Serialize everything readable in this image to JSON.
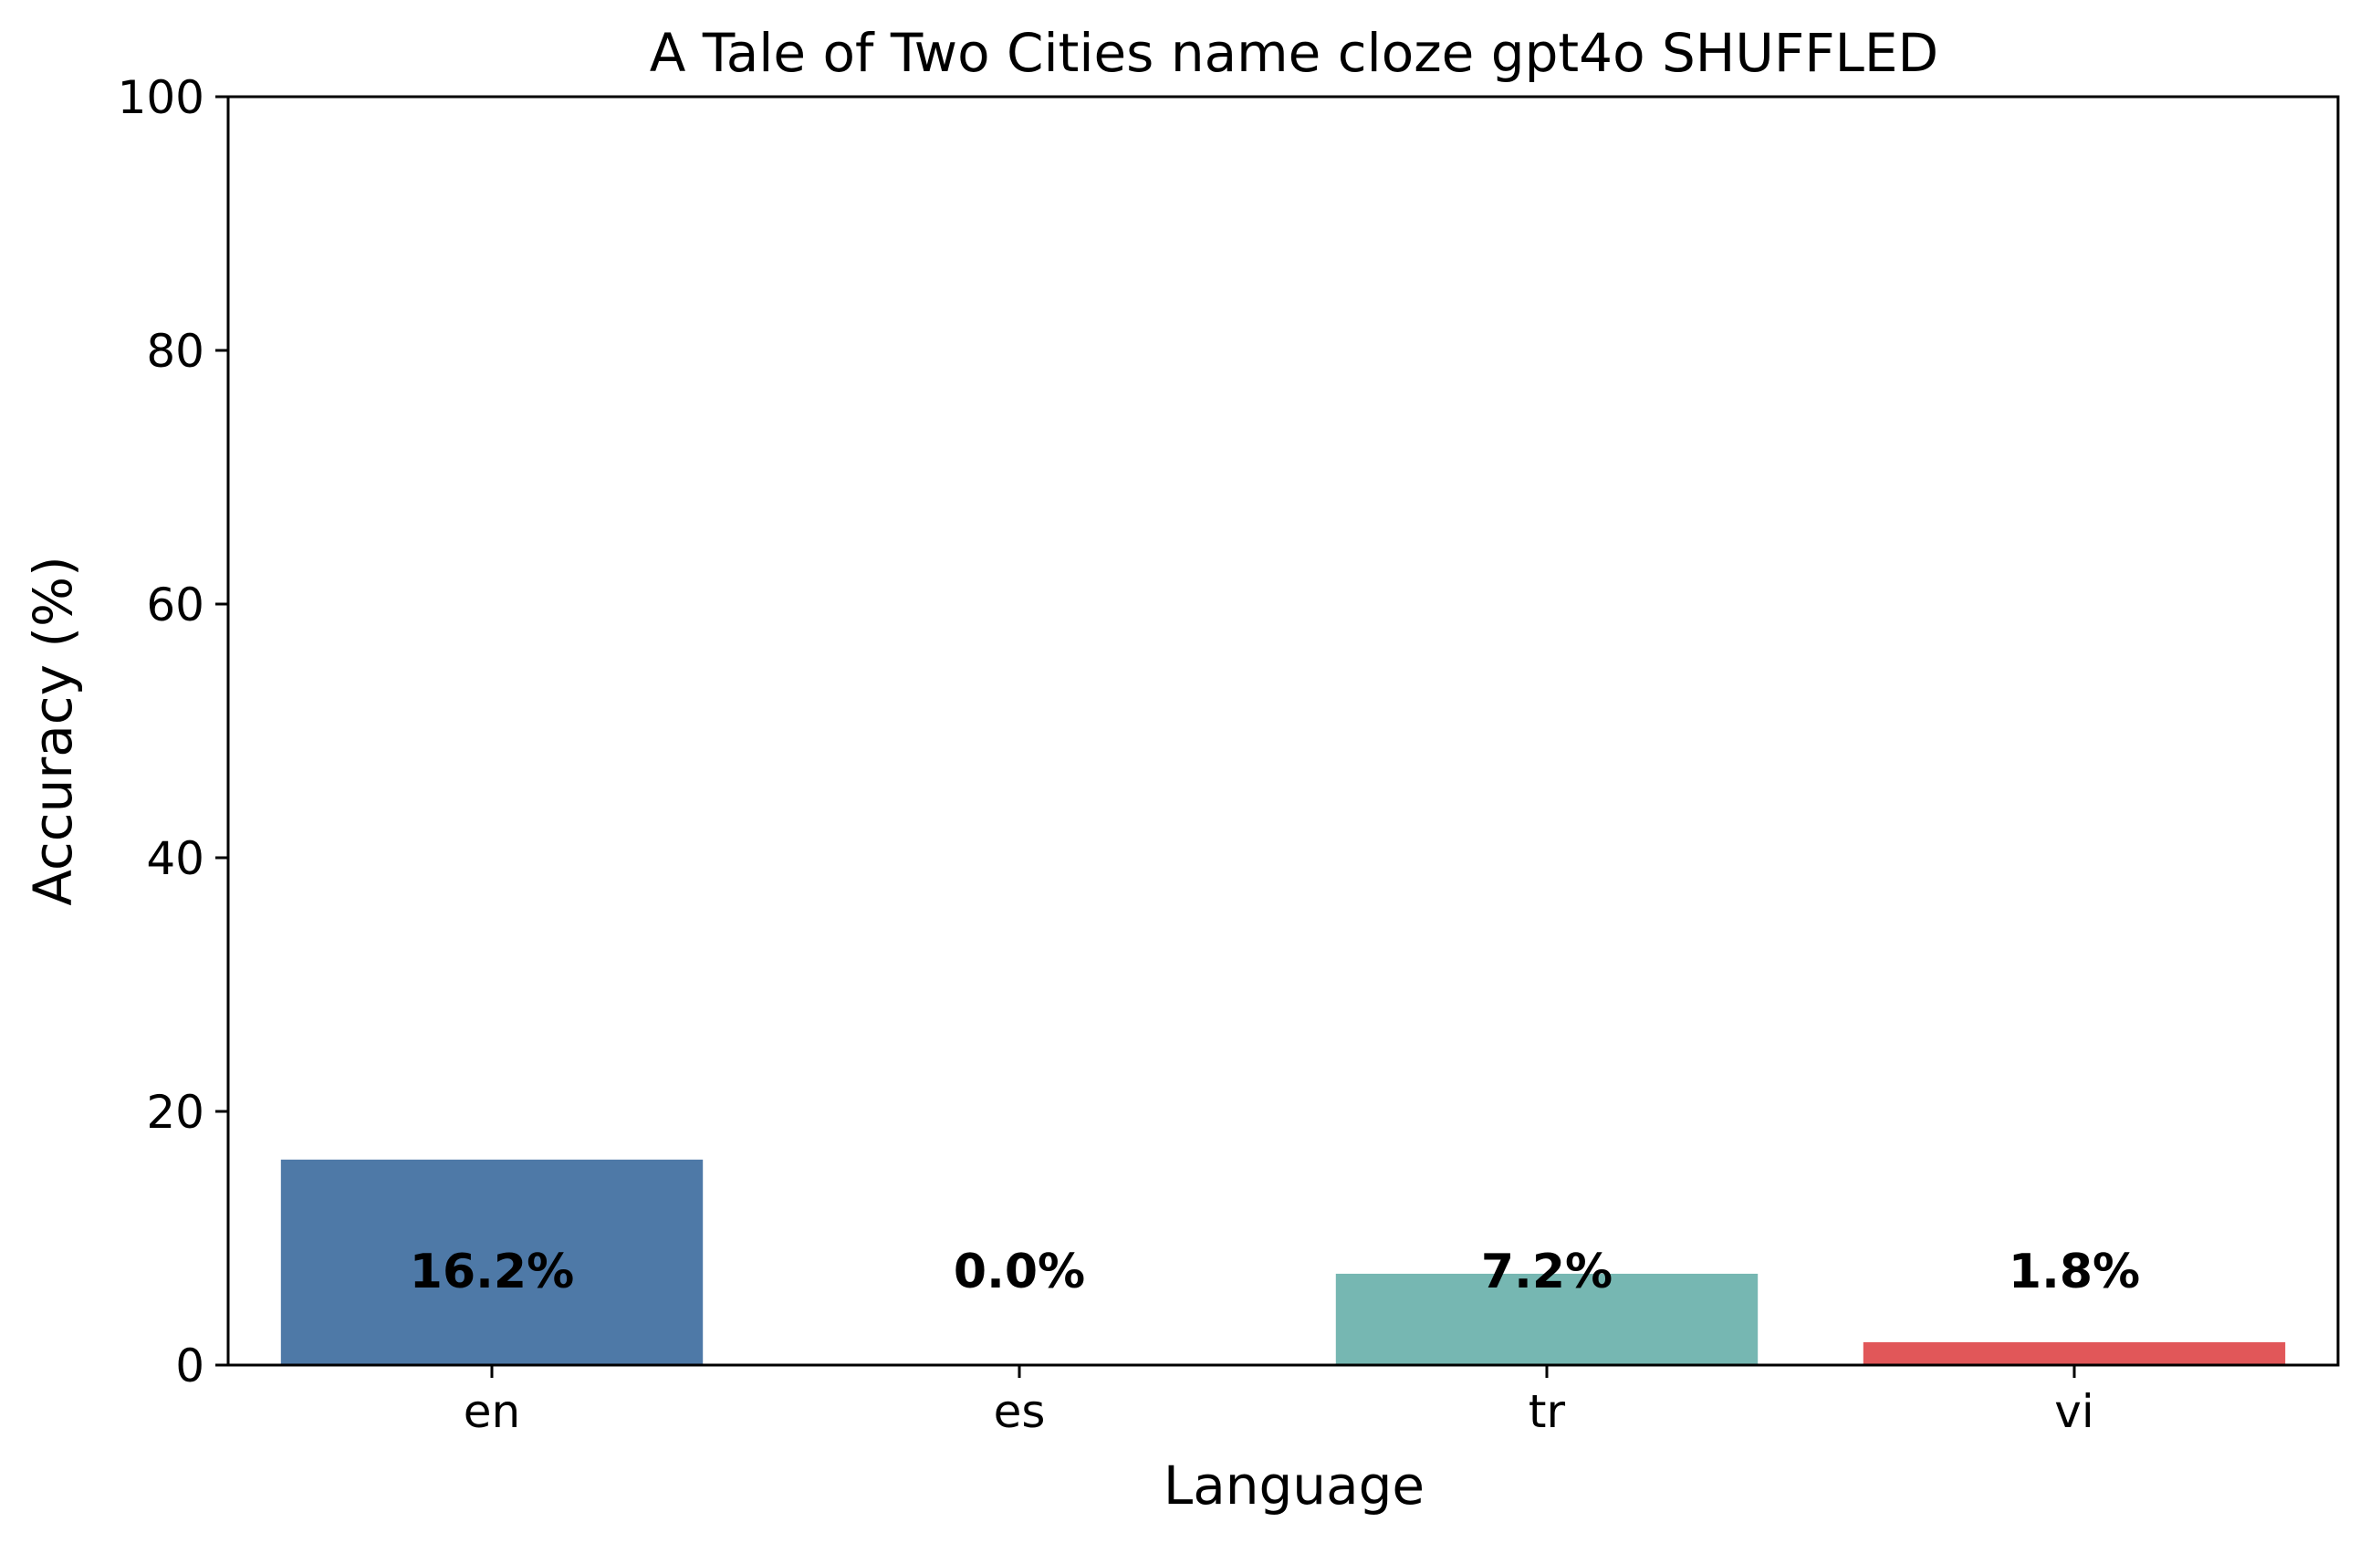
{
  "chart_data": {
    "type": "bar",
    "title": "A Tale of Two Cities name cloze gpt4o SHUFFLED",
    "xlabel": "Language",
    "ylabel": "Accuracy (%)",
    "categories": [
      "en",
      "es",
      "tr",
      "vi"
    ],
    "values": [
      16.2,
      0.0,
      7.2,
      1.8
    ],
    "data_labels": [
      "16.2%",
      "0.0%",
      "7.2%",
      "1.8%"
    ],
    "colors": [
      "#4e79a7",
      "#f28e2b",
      "#76b7b2",
      "#e15759"
    ],
    "ylim": [
      0,
      100
    ],
    "yticks": [
      0,
      20,
      40,
      60,
      80,
      100
    ],
    "grid": false,
    "legend": "none"
  }
}
